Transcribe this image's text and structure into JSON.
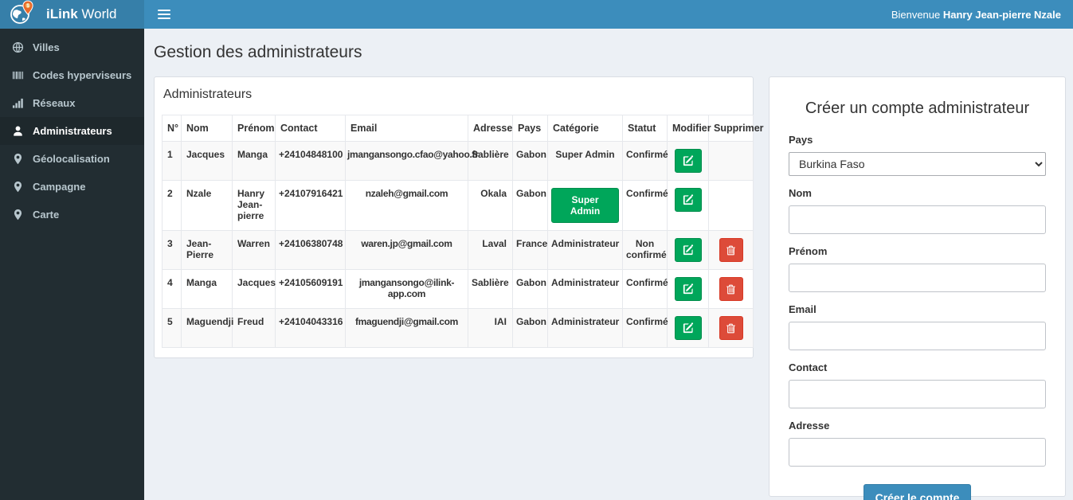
{
  "app": {
    "brand_bold": "iLink",
    "brand_rest": " World",
    "welcome_prefix": "Bienvenue ",
    "welcome_name": "Hanry Jean-pierre Nzale",
    "logo_icon": "globe-pin-logo",
    "menu_icon": "hamburger-icon"
  },
  "colors": {
    "navbar": "#3c8dbc",
    "logo_bg": "#367fa9",
    "sidebar_bg": "#222d32",
    "sidebar_active_bg": "#1e282c",
    "content_bg": "#ecf0f5",
    "success_green": "#00a65a",
    "danger_red": "#dd4b39",
    "primary_blue": "#3c8dbc",
    "pin_orange": "#e8692a"
  },
  "sidebar": {
    "items": [
      {
        "label": "Villes",
        "icon": "globe-icon",
        "active": false
      },
      {
        "label": "Codes hyperviseurs",
        "icon": "barcode-icon",
        "active": false
      },
      {
        "label": "Réseaux",
        "icon": "bar-chart-icon",
        "active": false
      },
      {
        "label": "Administrateurs",
        "icon": "user-icon",
        "active": true
      },
      {
        "label": "Géolocalisation",
        "icon": "map-marker-icon",
        "active": false
      },
      {
        "label": "Campagne",
        "icon": "map-marker-icon",
        "active": false
      },
      {
        "label": "Carte",
        "icon": "map-marker-icon",
        "active": false
      }
    ]
  },
  "page": {
    "title": "Gestion des administrateurs"
  },
  "table_panel": {
    "title": "Administrateurs",
    "columns": [
      "N°",
      "Nom",
      "Prénom",
      "Contact",
      "Email",
      "Adresse",
      "Pays",
      "Catégorie",
      "Statut",
      "Modifier",
      "Supprimer"
    ],
    "action_icons": {
      "edit": "edit-icon",
      "delete": "trash-icon"
    },
    "rows": [
      {
        "num": "1",
        "nom": "Jacques",
        "prenom": "Manga",
        "contact": "+24104848100",
        "email": "jmangansongo.cfao@yahoo.fr",
        "adresse": "Sablière",
        "pays": "Gabon",
        "categorie": "Super Admin",
        "categorie_style": "text",
        "statut": "Confirmé",
        "can_delete": false
      },
      {
        "num": "2",
        "nom": "Nzale",
        "prenom": "Hanry Jean-pierre",
        "contact": "+24107916421",
        "email": "nzaleh@gmail.com",
        "adresse": "Okala",
        "pays": "Gabon",
        "categorie": "Super Admin",
        "categorie_style": "button",
        "statut": "Confirmé",
        "can_delete": false
      },
      {
        "num": "3",
        "nom": "Jean-Pierre",
        "prenom": "Warren",
        "contact": "+24106380748",
        "email": "waren.jp@gmail.com",
        "adresse": "Laval",
        "pays": "France",
        "categorie": "Administrateur",
        "categorie_style": "text",
        "statut": "Non confirmé",
        "can_delete": true
      },
      {
        "num": "4",
        "nom": "Manga",
        "prenom": "Jacques",
        "contact": "+24105609191",
        "email": "jmangansongo@ilink-app.com",
        "adresse": "Sablière",
        "pays": "Gabon",
        "categorie": "Administrateur",
        "categorie_style": "text",
        "statut": "Confirmé",
        "can_delete": true
      },
      {
        "num": "5",
        "nom": "Maguendji",
        "prenom": "Freud",
        "contact": "+24104043316",
        "email": "fmaguendji@gmail.com",
        "adresse": "IAI",
        "pays": "Gabon",
        "categorie": "Administrateur",
        "categorie_style": "text",
        "statut": "Confirmé",
        "can_delete": true
      }
    ]
  },
  "form_panel": {
    "title": "Créer un compte administrateur",
    "fields": [
      {
        "label": "Pays",
        "type": "select",
        "value": "Burkina Faso"
      },
      {
        "label": "Nom",
        "type": "text",
        "value": ""
      },
      {
        "label": "Prénom",
        "type": "text",
        "value": ""
      },
      {
        "label": "Email",
        "type": "text",
        "value": ""
      },
      {
        "label": "Contact",
        "type": "text",
        "value": ""
      },
      {
        "label": "Adresse",
        "type": "text",
        "value": ""
      }
    ],
    "submit_label": "Créer le compte"
  }
}
